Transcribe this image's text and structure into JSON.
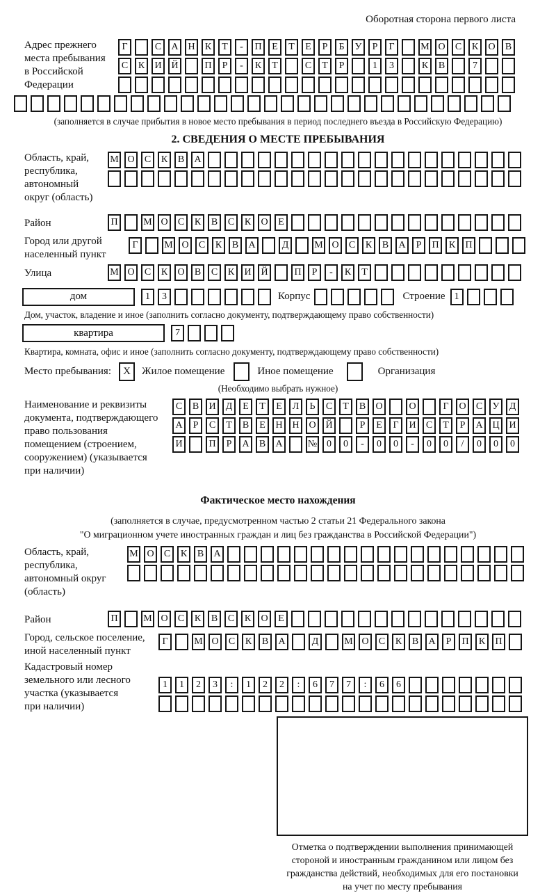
{
  "page": {
    "header_note": "Оборотная сторона первого листа"
  },
  "prev_address": {
    "label": "Адрес прежнего\nместа пребывания\nв Российской\nФедерации",
    "rows": [
      {
        "cells": "Г САНКТ-ПЕТЕРБУРГ МОСКОВ",
        "count": 24
      },
      {
        "cells": "СКИЙ ПР-КТ СТР 13 КВ 7",
        "count": 24
      },
      {
        "cells": "",
        "count": 24
      },
      {
        "cells": "",
        "count": 30
      }
    ],
    "caption": "(заполняется в случае прибытия в новое место пребывания в период последнего въезда в Российскую Федерацию)"
  },
  "section2": {
    "title": "2. СВЕДЕНИЯ О МЕСТЕ ПРЕБЫВАНИЯ",
    "region": {
      "label": "Область, край,\nреспублика,\nавтономный\nокруг (область)",
      "rows": [
        {
          "cells": "МОСКВА",
          "count": 25
        },
        {
          "cells": "",
          "count": 25
        }
      ]
    },
    "district": {
      "label": "Район",
      "row": {
        "cells": "П МОСКВСКОЕ",
        "count": 25
      }
    },
    "city": {
      "label": "Город или другой\nнаселенный пункт",
      "row": {
        "cells": "Г МОСКВА Д МОСКВАРПКП",
        "count": 24
      }
    },
    "street": {
      "label": "Улица",
      "row": {
        "cells": "МОСКОВСКИЙ ПР-КТ",
        "count": 25
      }
    },
    "house": {
      "box_label": "дом",
      "house_cells": {
        "cells": "13",
        "count": 8
      },
      "korpus_label": "Корпус",
      "korpus_cells": {
        "cells": "",
        "count": 5
      },
      "stroenie_label": "Строение",
      "stroenie_cells": {
        "cells": "1",
        "count": 4
      },
      "caption": "Дом, участок, владение и иное (заполнить согласно документу, подтверждающему право собственности)"
    },
    "apartment": {
      "box_label": "квартира",
      "cells": {
        "cells": "7",
        "count": 4
      },
      "caption": "Квартира, комната, офис и иное (заполнить согласно документу, подтверждающему право собственности)"
    },
    "stay_type": {
      "label": "Место пребывания:",
      "checked_mark": "X",
      "option1": "Жилое помещение",
      "option2": "Иное помещение",
      "option3": "Организация",
      "note": "(Необходимо выбрать нужное)"
    },
    "doc": {
      "label": "Наименование и реквизиты\nдокумента, подтверждающего\nправо пользования\nпомещением (строением,\nсооружением) (указывается\nпри наличии)",
      "rows": [
        {
          "cells": "СВИДЕТЕЛЬСТВО О ГОСУД",
          "count": 21
        },
        {
          "cells": "АРСТВЕННОЙ РЕГИСТРАЦИ",
          "count": 21
        },
        {
          "cells": "И ПРАВА №00-00-00/000",
          "count": 21
        }
      ]
    }
  },
  "actual_location": {
    "title": "Фактическое место нахождения",
    "note_line1": "(заполняется в случае, предусмотренном частью 2 статьи 21 Федерального закона",
    "note_line2": "\"О миграционном учете иностранных граждан и лиц без гражданства в Российской Федерации\")",
    "region": {
      "label": "Область, край,\nреспублика,\nавтономный округ\n(область)",
      "rows": [
        {
          "cells": "МОСКВА",
          "count": 24
        },
        {
          "cells": "",
          "count": 24
        }
      ]
    },
    "district": {
      "label": "Район",
      "row": {
        "cells": "П МОСКВСКОЕ",
        "count": 25
      }
    },
    "city": {
      "label": "Город, сельское поселение,\nиной населенный пункт",
      "row": {
        "cells": "Г МОСКВА Д МОСКВАРПКП",
        "count": 22
      }
    },
    "cadastre": {
      "label": "Кадастровый номер\nземельного или лесного\nучастка (указывается\nпри наличии)",
      "rows": [
        {
          "cells": "1123:122:677:66",
          "count": 22
        },
        {
          "cells": "",
          "count": 22
        }
      ]
    }
  },
  "stamp": {
    "caption": "Отметка о подтверждении выполнения принимающей\nстороной и иностранным гражданином или лицом без\nгражданства действий, необходимых для его постановки\nна учет по месту пребывания"
  }
}
